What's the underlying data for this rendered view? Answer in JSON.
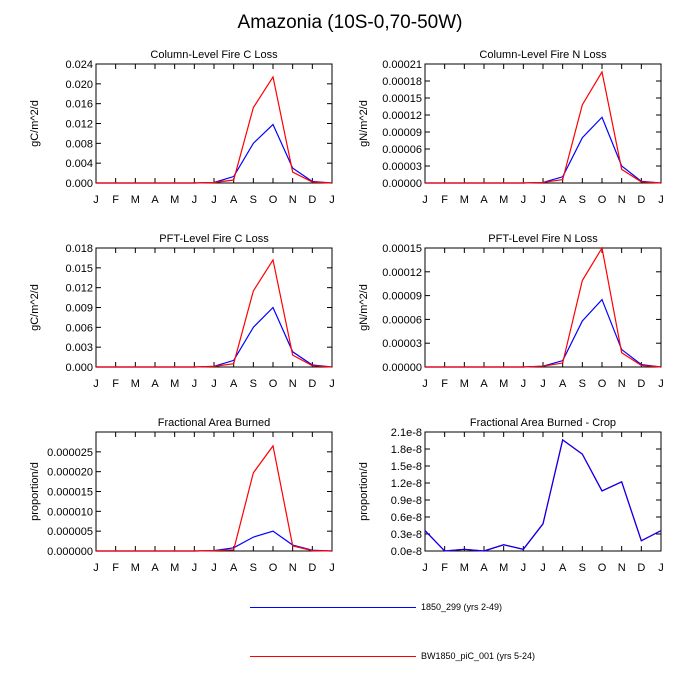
{
  "figure": {
    "title": "Amazonia (10S-0,70-50W)",
    "months": [
      "J",
      "F",
      "M",
      "A",
      "M",
      "J",
      "J",
      "A",
      "S",
      "O",
      "N",
      "D",
      "J"
    ]
  },
  "legend": [
    {
      "name": "1850_299 (yrs 2-49)",
      "color": "#0000ff"
    },
    {
      "name": "BW1850_piC_001 (yrs 5-24)",
      "color": "#ff0000"
    }
  ],
  "chart_data": [
    {
      "type": "line",
      "title": "Column-Level Fire C Loss",
      "ylabel": "gC/m^2/d",
      "ylim": [
        0,
        0.024
      ],
      "yticks": [
        0,
        0.004,
        0.008,
        0.012,
        0.016,
        0.02,
        0.024
      ],
      "ytick_labels": [
        "0.000",
        "0.004",
        "0.008",
        "0.012",
        "0.016",
        "0.020",
        "0.024"
      ],
      "series": [
        {
          "values": [
            0,
            0,
            0,
            0,
            0,
            0,
            0.0001,
            0.0013,
            0.008,
            0.0118,
            0.003,
            0.0003,
            0
          ]
        },
        {
          "values": [
            0,
            0,
            0,
            0,
            0,
            0,
            0.0001,
            0.0006,
            0.0152,
            0.0214,
            0.0022,
            0.0002,
            0
          ]
        }
      ]
    },
    {
      "type": "line",
      "title": "Column-Level Fire N Loss",
      "ylabel": "gN/m^2/d",
      "ylim": [
        0,
        0.00021
      ],
      "yticks": [
        0,
        3e-05,
        6e-05,
        9e-05,
        0.00012,
        0.00015,
        0.00018,
        0.00021
      ],
      "ytick_labels": [
        "0.00000",
        "0.00003",
        "0.00006",
        "0.00009",
        "0.00012",
        "0.00015",
        "0.00018",
        "0.00021"
      ],
      "series": [
        {
          "values": [
            0,
            0,
            0,
            0,
            0,
            0,
            1e-06,
            1.1e-05,
            8e-05,
            0.000116,
            3e-05,
            3e-06,
            0
          ]
        },
        {
          "values": [
            0,
            0,
            0,
            0,
            0,
            0,
            1e-06,
            6e-06,
            0.000138,
            0.000196,
            2.4e-05,
            2e-06,
            0
          ]
        }
      ]
    },
    {
      "type": "line",
      "title": "PFT-Level Fire C Loss",
      "ylabel": "gC/m^2/d",
      "ylim": [
        0,
        0.018
      ],
      "yticks": [
        0,
        0.003,
        0.006,
        0.009,
        0.012,
        0.015,
        0.018
      ],
      "ytick_labels": [
        "0.000",
        "0.003",
        "0.006",
        "0.009",
        "0.012",
        "0.015",
        "0.018"
      ],
      "series": [
        {
          "values": [
            0,
            0,
            0,
            0,
            0,
            0,
            0.0001,
            0.001,
            0.006,
            0.009,
            0.0023,
            0.0003,
            0
          ]
        },
        {
          "values": [
            0,
            0,
            0,
            0,
            0,
            0,
            0.0001,
            0.0005,
            0.0115,
            0.0162,
            0.0018,
            0.0002,
            0
          ]
        }
      ]
    },
    {
      "type": "line",
      "title": "PFT-Level Fire N Loss",
      "ylabel": "gN/m^2/d",
      "ylim": [
        0,
        0.00015
      ],
      "yticks": [
        0,
        3e-05,
        6e-05,
        9e-05,
        0.00012,
        0.00015
      ],
      "ytick_labels": [
        "0.00000",
        "0.00003",
        "0.00006",
        "0.00009",
        "0.00012",
        "0.00015"
      ],
      "series": [
        {
          "values": [
            0,
            0,
            0,
            0,
            0,
            0,
            1e-06,
            8e-06,
            5.8e-05,
            8.5e-05,
            2.2e-05,
            3e-06,
            0
          ]
        },
        {
          "values": [
            0,
            0,
            0,
            0,
            0,
            0,
            1e-06,
            5e-06,
            0.000109,
            0.00015,
            1.8e-05,
            2e-06,
            0
          ]
        }
      ]
    },
    {
      "type": "line",
      "title": "Fractional Area Burned",
      "ylabel": "proportion/d",
      "ylim": [
        0,
        3e-05
      ],
      "yticks": [
        0,
        5e-06,
        1e-05,
        1.5e-05,
        2e-05,
        2.5e-05
      ],
      "ytick_labels": [
        "0.000000",
        "0.000005",
        "0.000010",
        "0.000015",
        "0.000020",
        "0.000025"
      ],
      "series": [
        {
          "values": [
            0,
            0,
            0,
            0,
            0,
            0,
            1e-07,
            8e-07,
            3.5e-06,
            5e-06,
            1.5e-06,
            2e-07,
            0
          ]
        },
        {
          "values": [
            0,
            0,
            0,
            0,
            0,
            0,
            1e-07,
            3e-07,
            1.97e-05,
            2.65e-05,
            1.3e-06,
            1e-07,
            0
          ]
        }
      ]
    },
    {
      "type": "line",
      "title": "Fractional Area Burned - Crop",
      "ylabel": "proportion/d",
      "ylim": [
        0,
        2.1e-08
      ],
      "yticks": [
        0,
        3e-09,
        6e-09,
        9e-09,
        1.2e-08,
        1.5e-08,
        1.8e-08,
        2.1e-08
      ],
      "ytick_labels": [
        "0.0e-8",
        "0.3e-8",
        "0.6e-8",
        "0.9e-8",
        "1.2e-8",
        "1.5e-8",
        "1.8e-8",
        "2.1e-8"
      ],
      "series": [
        {
          "values": [
            3.6e-09,
            0,
            3e-10,
            0,
            1.1e-09,
            3e-10,
            4.8e-09,
            1.96e-08,
            1.71e-08,
            1.06e-08,
            1.22e-08,
            1.8e-09,
            3.6e-09
          ]
        },
        {
          "values": [
            3.6e-09,
            0,
            3e-10,
            0,
            1.1e-09,
            3e-10,
            4.8e-09,
            1.96e-08,
            1.71e-08,
            1.06e-08,
            1.22e-08,
            1.8e-09,
            3.6e-09
          ]
        }
      ]
    }
  ]
}
